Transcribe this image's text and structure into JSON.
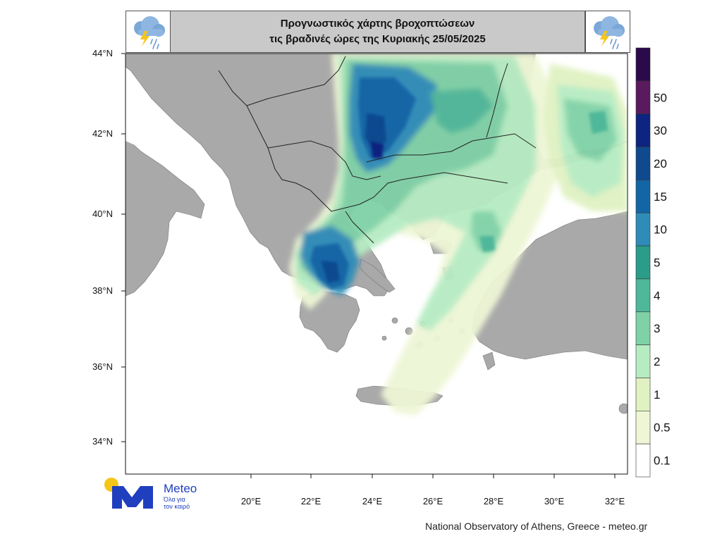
{
  "title": {
    "line1": "Προγνωστικός χάρτης βροχοπτώσεων",
    "line2": "τις βραδινές ώρες  της Κυριακής 25/05/2025"
  },
  "icons": {
    "left": "rain-cloud-lightning-icon",
    "right": "rain-cloud-lightning-icon"
  },
  "latitude_labels": [
    "44°N",
    "42°N",
    "40°N",
    "38°N",
    "36°N",
    "34°N"
  ],
  "longitude_labels": [
    "20°E",
    "22°E",
    "24°E",
    "26°E",
    "28°E",
    "30°E",
    "32°E"
  ],
  "legend": {
    "unit_hint": "precipitation",
    "levels": [
      {
        "label": "",
        "color": "#2a0a4a"
      },
      {
        "label": "50",
        "color": "#5a1a5e"
      },
      {
        "label": "30",
        "color": "#0d2480"
      },
      {
        "label": "20",
        "color": "#0f4a8f"
      },
      {
        "label": "15",
        "color": "#1366a6"
      },
      {
        "label": "10",
        "color": "#2f8cb8"
      },
      {
        "label": "5",
        "color": "#2a9c8a"
      },
      {
        "label": "4",
        "color": "#4fb79a"
      },
      {
        "label": "3",
        "color": "#7fd1a6"
      },
      {
        "label": "2",
        "color": "#b6ecc2"
      },
      {
        "label": "1",
        "color": "#e0f2c2"
      },
      {
        "label": "0.5",
        "color": "#eef6d6"
      },
      {
        "label": "0.1",
        "color": "#ffffff"
      }
    ]
  },
  "logo": {
    "name": "Meteo",
    "tagline_line1": "Όλα για",
    "tagline_line2": "τον καιρό",
    "brand_color": "#1f3fbf",
    "sun_color": "#f5c518"
  },
  "footer": "National Observatory of Athens, Greece - meteo.gr",
  "colors": {
    "land": "#a9a9a9",
    "sea": "#ffffff",
    "border": "#222222"
  }
}
